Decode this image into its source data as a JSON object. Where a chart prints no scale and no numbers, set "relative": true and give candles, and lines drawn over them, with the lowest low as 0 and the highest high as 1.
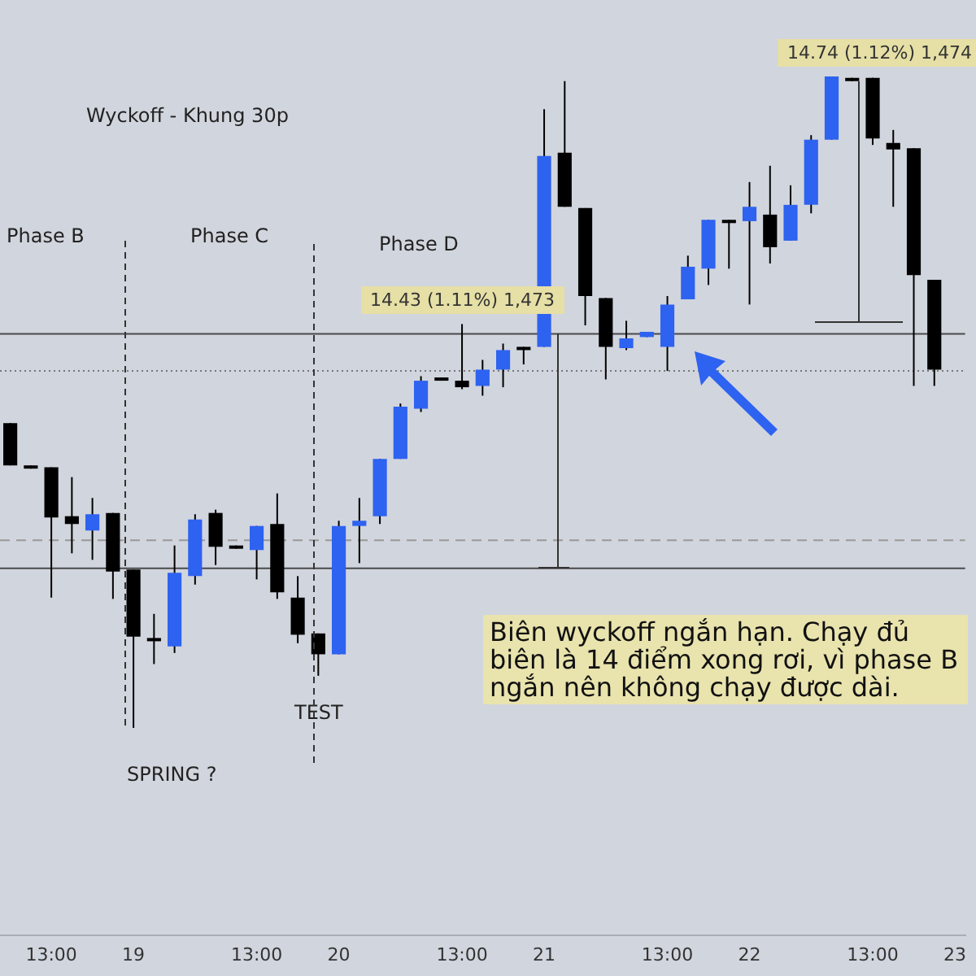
{
  "chart_data": {
    "type": "candlestick",
    "title": "Wyckoff - Khung 30p",
    "relative": true,
    "categories": [
      null,
      null,
      "13:00",
      null,
      null,
      null,
      "19",
      null,
      null,
      null,
      null,
      null,
      "13:00",
      null,
      null,
      null,
      "20",
      null,
      null,
      null,
      null,
      null,
      "13:00",
      null,
      null,
      null,
      "21",
      null,
      null,
      null,
      null,
      null,
      "13:00",
      null,
      null,
      null,
      "22",
      null,
      null,
      null,
      null,
      null,
      "13:00",
      null,
      null,
      null,
      "23"
    ],
    "ohlc": [
      [
        0.468,
        0.468,
        0.403,
        0.403
      ],
      [
        0.403,
        0.403,
        0.398,
        0.398
      ],
      [
        0.4,
        0.4,
        0.2,
        0.323
      ],
      [
        0.325,
        0.385,
        0.268,
        0.313
      ],
      [
        0.303,
        0.353,
        0.258,
        0.328
      ],
      [
        0.33,
        0.33,
        0.198,
        0.24
      ],
      [
        0.243,
        0.243,
        0,
        0.14
      ],
      [
        0.138,
        0.175,
        0.098,
        0.133
      ],
      [
        0.125,
        0.28,
        0.115,
        0.238
      ],
      [
        0.233,
        0.328,
        0.22,
        0.32
      ],
      [
        0.33,
        0.335,
        0.25,
        0.278
      ],
      [
        0.28,
        0.28,
        0.275,
        0.275
      ],
      [
        0.273,
        0.31,
        0.228,
        0.31
      ],
      [
        0.313,
        0.36,
        0.198,
        0.208
      ],
      [
        0.2,
        0.233,
        0.13,
        0.143
      ],
      [
        0.145,
        0.145,
        0.08,
        0.113
      ],
      [
        0.113,
        0.318,
        0.113,
        0.31
      ],
      [
        0.31,
        0.353,
        0.253,
        0.318
      ],
      [
        0.325,
        0.413,
        0.313,
        0.413
      ],
      [
        0.413,
        0.498,
        0.413,
        0.493
      ],
      [
        0.49,
        0.54,
        0.485,
        0.533
      ],
      [
        0.538,
        0.538,
        0.533,
        0.533
      ],
      [
        0.533,
        0.62,
        0.52,
        0.523
      ],
      [
        0.525,
        0.565,
        0.51,
        0.55
      ],
      [
        0.55,
        0.59,
        0.523,
        0.58
      ],
      [
        0.585,
        0.585,
        0.558,
        0.58
      ],
      [
        0.585,
        0.95,
        0.585,
        0.878
      ],
      [
        0.883,
        0.993,
        0.8,
        0.8
      ],
      [
        0.798,
        0.798,
        0.618,
        0.663
      ],
      [
        0.66,
        0.66,
        0.535,
        0.585
      ],
      [
        0.583,
        0.625,
        0.58,
        0.598
      ],
      [
        0.6,
        0.608,
        0.6,
        0.608
      ],
      [
        0.585,
        0.663,
        0.548,
        0.65
      ],
      [
        0.658,
        0.725,
        0.658,
        0.708
      ],
      [
        0.705,
        0.78,
        0.68,
        0.78
      ],
      [
        0.78,
        0.78,
        0.705,
        0.775
      ],
      [
        0.778,
        0.838,
        0.65,
        0.8
      ],
      [
        0.788,
        0.863,
        0.713,
        0.738
      ],
      [
        0.748,
        0.833,
        0.748,
        0.803
      ],
      [
        0.803,
        0.91,
        0.79,
        0.903
      ],
      [
        0.903,
        1,
        0.903,
        1
      ],
      [
        0.998,
        0.998,
        0.993,
        0.993
      ],
      [
        0.998,
        0.998,
        0.895,
        0.905
      ],
      [
        0.898,
        0.918,
        0.8,
        0.888
      ],
      [
        0.89,
        0.89,
        0.525,
        0.695
      ],
      [
        0.688,
        0.688,
        0.525,
        0.55
      ],
      null
    ],
    "colors": [
      "#000000",
      "#000000",
      "#000000",
      "#000000",
      "#2e62f0",
      "#000000",
      "#000000",
      "#000000",
      "#2e62f0",
      "#2e62f0",
      "#000000",
      "#000000",
      "#2e62f0",
      "#000000",
      "#000000",
      "#000000",
      "#2e62f0",
      "#2e62f0",
      "#2e62f0",
      "#2e62f0",
      "#2e62f0",
      "#000000",
      "#000000",
      "#2e62f0",
      "#2e62f0",
      "#000000",
      "#2e62f0",
      "#000000",
      "#000000",
      "#000000",
      "#2e62f0",
      "#2e62f0",
      "#2e62f0",
      "#2e62f0",
      "#2e62f0",
      "#000000",
      "#2e62f0",
      "#000000",
      "#2e62f0",
      "#2e62f0",
      "#2e62f0",
      "#000000",
      "#000000",
      "#000000",
      "#000000",
      "#000000",
      null
    ],
    "ref_lines": [
      {
        "axis": "y",
        "value": 0.605,
        "color": "#4a4a4a",
        "line_style": "solid"
      },
      {
        "axis": "y",
        "value": 0.245,
        "color": "#4a4a4a",
        "line_style": "solid"
      },
      {
        "axis": "y",
        "value": 0.548,
        "color": "#777777",
        "line_style": "dotted"
      },
      {
        "axis": "y",
        "value": 0.288,
        "color": "#999999",
        "line_style": "dashed"
      }
    ],
    "annotations": [
      "Phase B",
      "Phase C",
      "Phase D",
      "SPRING ?",
      "TEST",
      {
        "text": "14.43 (1.11%) 1,473",
        "x": "21",
        "y": 0.605
      },
      {
        "text": "14.74 (1.12%) 1,474",
        "y": 1
      },
      "Biên wyckoff ngắn hạn. Chạy đủ biên là 14 điểm xong rơi, vì phase B ngắn nên không chạy được dài."
    ]
  }
}
